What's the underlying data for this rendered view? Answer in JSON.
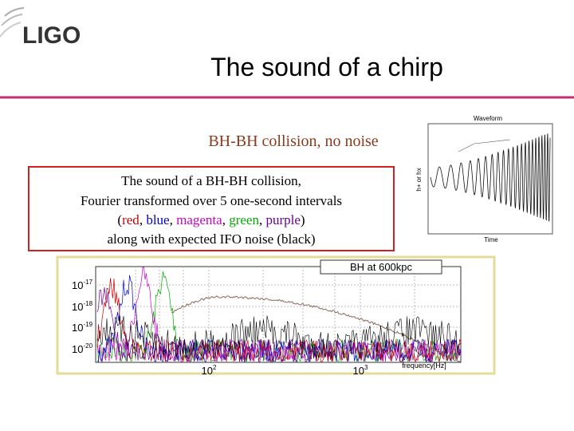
{
  "header": {
    "logo": "LIGO",
    "title": "The sound of a chirp"
  },
  "subtitle": "BH-BH collision, no noise",
  "box": {
    "lines": [
      "The sound of a BH-BH collision,",
      "Fourier transformed over 5 one-second intervals",
      "along with expected IFO noise (black)"
    ],
    "colored_line": [
      {
        "text": "(",
        "color": "#000000"
      },
      {
        "text": "red",
        "color": "#cc0000"
      },
      {
        "text": ", ",
        "color": "#000000"
      },
      {
        "text": "blue",
        "color": "#0000cc"
      },
      {
        "text": ", ",
        "color": "#000000"
      },
      {
        "text": "magenta",
        "color": "#cc00cc"
      },
      {
        "text": ", ",
        "color": "#000000"
      },
      {
        "text": "green",
        "color": "#00aa00"
      },
      {
        "text": ", ",
        "color": "#000000"
      },
      {
        "text": "purple",
        "color": "#660099"
      },
      {
        "text": ")",
        "color": "#000000"
      }
    ]
  },
  "waveform": {
    "title": "Waveform",
    "ylabel": "h+ or hx",
    "xlabel": "Time"
  },
  "spectrum": {
    "title": "BH at 600kpc",
    "yticks": [
      {
        "base": "10",
        "exp": "-17"
      },
      {
        "base": "10",
        "exp": "-18"
      },
      {
        "base": "10",
        "exp": "-19"
      },
      {
        "base": "10",
        "exp": "-20"
      }
    ],
    "xticks": [
      {
        "base": "10",
        "exp": "2"
      },
      {
        "base": "10",
        "exp": "3"
      }
    ],
    "xlabel": "frequency[Hz]"
  }
}
